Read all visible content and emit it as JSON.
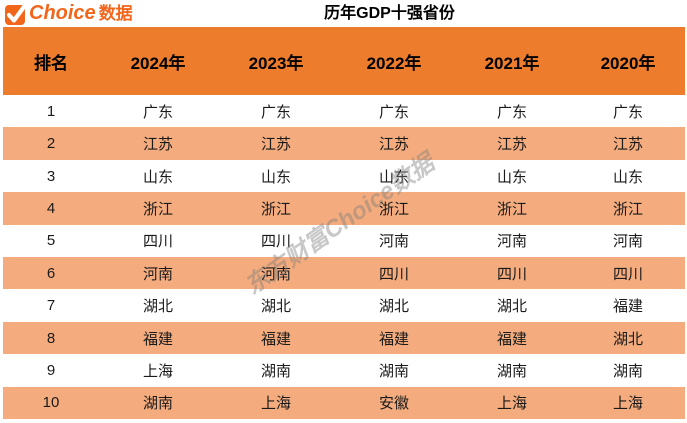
{
  "logo": {
    "icon": "check-icon",
    "brand": "Choice",
    "brand_suffix": "数据"
  },
  "title": "历年GDP十强省份",
  "watermark": "东方财富Choice数据",
  "colors": {
    "header_bg": "#ed7d2d",
    "row_alt_bg": "#f4ac7e",
    "brand_orange": "#f2661c",
    "header_text": "#000000",
    "cell_text": "#1a1a1a"
  },
  "chart_data": {
    "type": "table",
    "title": "历年GDP十强省份",
    "columns": [
      "排名",
      "2024年",
      "2023年",
      "2022年",
      "2021年",
      "2020年"
    ],
    "rows": [
      [
        "1",
        "广东",
        "广东",
        "广东",
        "广东",
        "广东"
      ],
      [
        "2",
        "江苏",
        "江苏",
        "江苏",
        "江苏",
        "江苏"
      ],
      [
        "3",
        "山东",
        "山东",
        "山东",
        "山东",
        "山东"
      ],
      [
        "4",
        "浙江",
        "浙江",
        "浙江",
        "浙江",
        "浙江"
      ],
      [
        "5",
        "四川",
        "四川",
        "河南",
        "河南",
        "河南"
      ],
      [
        "6",
        "河南",
        "河南",
        "四川",
        "四川",
        "四川"
      ],
      [
        "7",
        "湖北",
        "湖北",
        "湖北",
        "湖北",
        "福建"
      ],
      [
        "8",
        "福建",
        "福建",
        "福建",
        "福建",
        "湖北"
      ],
      [
        "9",
        "上海",
        "湖南",
        "湖南",
        "湖南",
        "湖南"
      ],
      [
        "10",
        "湖南",
        "上海",
        "安徽",
        "上海",
        "上海"
      ]
    ],
    "layout": {
      "row_striping": "even ranks highlighted orange",
      "grid": false,
      "header_position": "top"
    }
  }
}
